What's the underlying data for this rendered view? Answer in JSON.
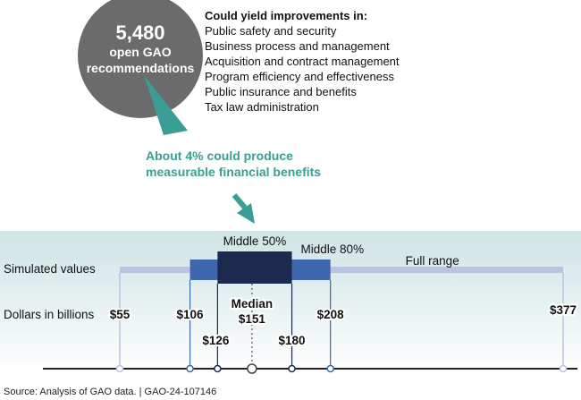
{
  "pie": {
    "number": "5,480",
    "line2": "open GAO",
    "line3": "recommendations",
    "circle_color": "#6b6b6b",
    "wedge_color": "#3a9e96"
  },
  "improvements": {
    "heading": "Could yield improvements in:",
    "items": [
      "Public safety and security",
      "Business process and management",
      "Acquisition and contract management",
      "Program efficiency and effectiveness",
      "Public insurance and benefits",
      "Tax law administration"
    ]
  },
  "callout": {
    "line1": "About 4% could produce",
    "line2": "measurable financial benefits",
    "color": "#3a9e96"
  },
  "range_chart": {
    "row_simulated": "Simulated values",
    "row_dollars": "Dollars in billions",
    "label_middle50": "Middle 50%",
    "label_middle80": "Middle 80%",
    "label_full": "Full range",
    "label_median_word": "Median",
    "colors": {
      "full": "#b9c5e0",
      "middle80": "#3d68ad",
      "middle50": "#1b2a4e",
      "band_top": "#cfe3e5"
    },
    "values": {
      "min": 55,
      "p10": 106,
      "p25": 126,
      "median": 151,
      "p75": 180,
      "p90": 208,
      "max": 377
    },
    "labels": {
      "min": "$55",
      "p10": "$106",
      "p25": "$126",
      "median": "$151",
      "p75": "$180",
      "p90": "$208",
      "max": "$377"
    }
  },
  "source": "Source: Analysis of GAO data.  |  GAO-24-107146"
}
